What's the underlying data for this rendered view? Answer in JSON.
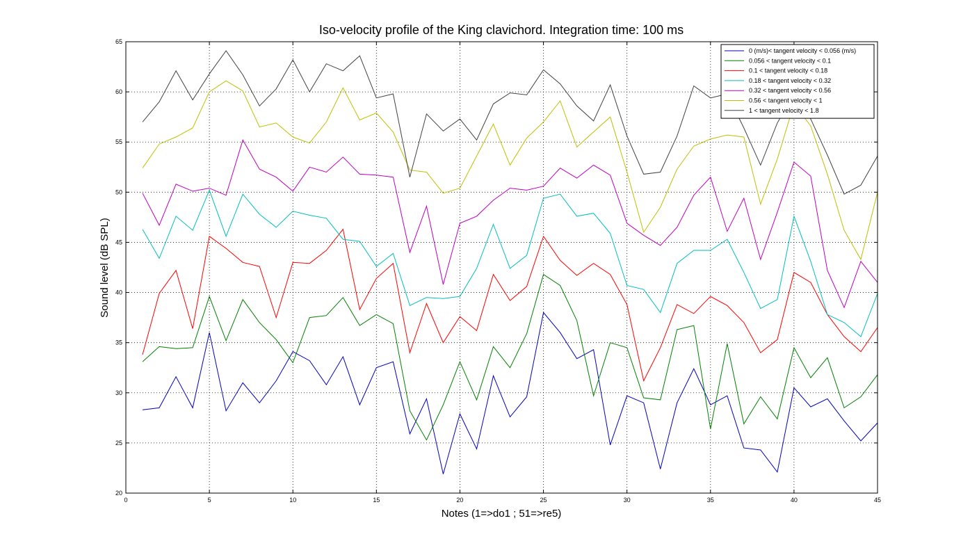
{
  "chart_data": {
    "type": "line",
    "title": "Iso-velocity profile of the King clavichord. Integration time: 100 ms",
    "xlabel": "Notes (1=>do1 ; 51=>re5)",
    "ylabel": "Sound level (dB SPL)",
    "xlim": [
      0,
      45
    ],
    "ylim": [
      20,
      65
    ],
    "xticks": [
      0,
      5,
      10,
      15,
      20,
      25,
      30,
      35,
      40,
      45
    ],
    "yticks": [
      20,
      25,
      30,
      35,
      40,
      45,
      50,
      55,
      60,
      65
    ],
    "grid": true,
    "legend_position": "top-right",
    "x": [
      1,
      2,
      3,
      4,
      5,
      6,
      7,
      8,
      9,
      10,
      11,
      12,
      13,
      14,
      15,
      16,
      17,
      18,
      19,
      20,
      21,
      22,
      23,
      24,
      25,
      26,
      27,
      28,
      29,
      30,
      31,
      32,
      33,
      34,
      35,
      36,
      37,
      38,
      39,
      40,
      41,
      42,
      43,
      44,
      45
    ],
    "series": [
      {
        "name": "0 (m/s)< tangent velocity < 0.056 (m/s)",
        "color": "#0000bf",
        "values": [
          28.3,
          28.5,
          31.6,
          28.5,
          36.0,
          28.2,
          31.0,
          29.0,
          31.2,
          34.1,
          33.2,
          30.8,
          33.6,
          28.8,
          32.5,
          33.1,
          25.9,
          29.4,
          21.9,
          27.9,
          24.4,
          31.7,
          27.6,
          29.6,
          38.0,
          36.0,
          33.4,
          34.3,
          24.8,
          29.7,
          29.0,
          22.4,
          29.0,
          32.4,
          28.8,
          29.7,
          24.5,
          24.3,
          22.1,
          30.5,
          28.6,
          29.4,
          27.2,
          25.2,
          27.0
        ]
      },
      {
        "name": "0.056 < tangent velocity < 0.1",
        "color": "#008000",
        "values": [
          33.1,
          34.6,
          34.4,
          34.5,
          39.6,
          35.2,
          39.3,
          37.0,
          35.3,
          33.0,
          37.5,
          37.7,
          39.5,
          36.7,
          37.8,
          36.9,
          28.2,
          25.3,
          28.8,
          33.1,
          29.3,
          34.6,
          32.5,
          35.9,
          41.8,
          40.7,
          37.2,
          29.7,
          35.0,
          34.5,
          29.5,
          29.3,
          36.3,
          36.7,
          26.4,
          34.9,
          26.9,
          29.6,
          27.4,
          34.5,
          31.5,
          33.5,
          28.5,
          29.6,
          31.8
        ]
      },
      {
        "name": "0.1 < tangent velocity < 0.18",
        "color": "#ff0000",
        "values": [
          33.8,
          39.9,
          42.2,
          36.4,
          45.6,
          44.4,
          43.0,
          42.6,
          37.5,
          43.0,
          42.9,
          44.2,
          46.3,
          38.3,
          41.4,
          42.9,
          34.0,
          38.9,
          35.0,
          37.6,
          36.2,
          41.8,
          39.2,
          40.6,
          45.6,
          43.2,
          41.7,
          42.9,
          41.8,
          38.8,
          31.2,
          34.5,
          38.8,
          37.9,
          39.6,
          38.7,
          37.0,
          34.0,
          35.3,
          42.0,
          41.0,
          37.8,
          35.6,
          34.1,
          36.5
        ]
      },
      {
        "name": "0.18 < tangent velocity < 0.32",
        "color": "#00bfbf",
        "values": [
          46.3,
          43.4,
          47.6,
          46.2,
          50.2,
          45.6,
          49.8,
          47.8,
          46.5,
          48.1,
          47.7,
          47.4,
          45.3,
          45.1,
          42.6,
          43.9,
          38.7,
          39.5,
          39.4,
          39.6,
          42.4,
          46.8,
          42.4,
          43.7,
          49.4,
          49.8,
          47.6,
          47.9,
          45.9,
          40.7,
          40.3,
          38.0,
          42.9,
          44.2,
          44.2,
          45.3,
          42.0,
          38.4,
          39.3,
          47.6,
          43.1,
          37.8,
          37.0,
          35.6,
          39.9
        ]
      },
      {
        "name": "0.32 < tangent velocity < 0.56",
        "color": "#bf00bf",
        "values": [
          49.9,
          46.7,
          50.8,
          50.1,
          50.4,
          49.7,
          55.2,
          52.3,
          51.5,
          50.1,
          52.5,
          52.0,
          53.5,
          51.8,
          51.7,
          51.5,
          44.0,
          48.6,
          40.8,
          46.9,
          47.6,
          49.2,
          50.4,
          50.2,
          50.6,
          52.4,
          51.4,
          52.7,
          51.7,
          46.9,
          45.7,
          44.7,
          46.5,
          49.7,
          51.5,
          46.1,
          49.4,
          43.3,
          48.0,
          53.0,
          51.6,
          42.2,
          38.5,
          43.1,
          41.0
        ]
      },
      {
        "name": "0.56 < tangent velocity < 1",
        "color": "#bfbf00",
        "values": [
          52.4,
          54.8,
          55.5,
          56.4,
          60.0,
          61.1,
          60.1,
          56.5,
          56.9,
          55.5,
          54.9,
          57.0,
          60.4,
          57.2,
          57.9,
          56.0,
          52.2,
          52.0,
          49.9,
          50.4,
          53.6,
          56.8,
          52.7,
          55.4,
          57.0,
          59.1,
          54.5,
          56.0,
          57.5,
          52.0,
          46.0,
          48.5,
          52.3,
          54.6,
          55.3,
          55.7,
          55.5,
          48.8,
          53.3,
          58.8,
          56.6,
          51.8,
          46.2,
          43.3,
          50.0
        ]
      },
      {
        "name": "1 < tangent velocity < 1.8",
        "color": "#404040",
        "values": [
          57.0,
          59.0,
          62.1,
          59.2,
          61.8,
          64.1,
          61.7,
          58.6,
          60.3,
          63.2,
          60.0,
          62.8,
          62.1,
          63.6,
          59.4,
          59.8,
          51.5,
          57.8,
          56.1,
          57.3,
          55.2,
          58.8,
          59.9,
          59.7,
          62.2,
          60.8,
          58.6,
          57.1,
          60.7,
          55.6,
          51.8,
          52.0,
          55.6,
          60.6,
          59.4,
          59.8,
          56.4,
          52.7,
          56.9,
          59.8,
          57.3,
          53.7,
          49.8,
          50.7,
          53.6
        ]
      }
    ]
  }
}
